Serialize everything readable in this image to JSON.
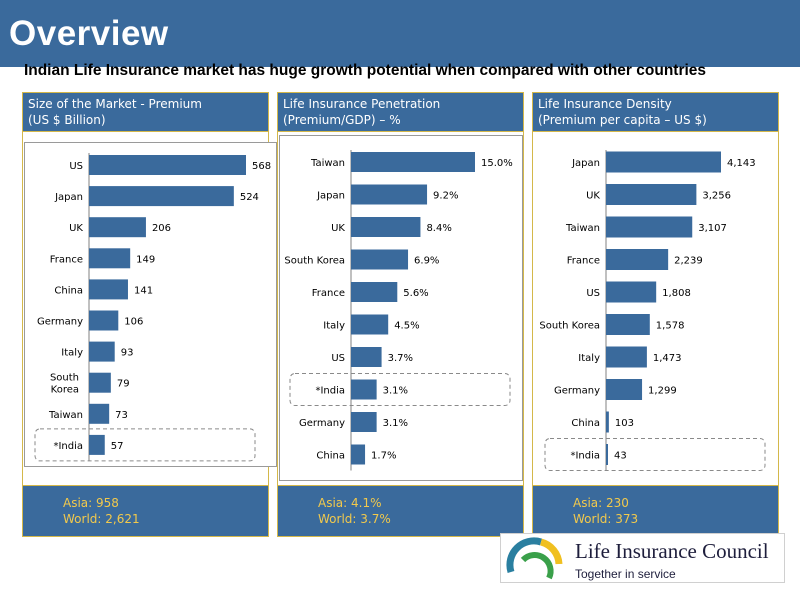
{
  "header": {
    "title": "Overview",
    "subtitle": "Indian Life Insurance market has huge growth potential when compared with other countries"
  },
  "colors": {
    "header_blue": "#3a6a9c",
    "bar_blue": "#3a6a9c",
    "footer_text": "#f2c94c",
    "border_gold": "#d4b84a"
  },
  "panels": [
    {
      "header_line1": "Size of the Market - Premium",
      "header_line2": "(US $ Billion)",
      "footer_line1": "Asia: 958",
      "footer_line2": "World: 2,621"
    },
    {
      "header_line1": "Life Insurance Penetration",
      "header_line2": "(Premium/GDP) – %",
      "footer_line1": "Asia: 4.1%",
      "footer_line2": "World: 3.7%"
    },
    {
      "header_line1": "Life Insurance Density",
      "header_line2": "(Premium per capita – US $)",
      "footer_line1": "Asia: 230",
      "footer_line2": "World: 373"
    }
  ],
  "chart_data": [
    {
      "type": "bar",
      "orientation": "horizontal",
      "categories": [
        "US",
        "Japan",
        "UK",
        "France",
        "China",
        "Germany",
        "Italy",
        "South Korea",
        "Taiwan",
        "*India"
      ],
      "values": [
        568,
        524,
        206,
        149,
        141,
        106,
        93,
        79,
        73,
        57
      ],
      "labels": [
        "568",
        "524",
        "206",
        "149",
        "141",
        "106",
        "93",
        "79",
        "73",
        "57"
      ],
      "highlight": "*India"
    },
    {
      "type": "bar",
      "orientation": "horizontal",
      "categories": [
        "Taiwan",
        "Japan",
        "UK",
        "South Korea",
        "France",
        "Italy",
        "US",
        "*India",
        "Germany",
        "China"
      ],
      "values": [
        15.0,
        9.2,
        8.4,
        6.9,
        5.6,
        4.5,
        3.7,
        3.1,
        3.1,
        1.7
      ],
      "labels": [
        "15.0%",
        "9.2%",
        "8.4%",
        "6.9%",
        "5.6%",
        "4.5%",
        "3.7%",
        "3.1%",
        "3.1%",
        "1.7%"
      ],
      "highlight": "*India"
    },
    {
      "type": "bar",
      "orientation": "horizontal",
      "categories": [
        "Japan",
        "UK",
        "Taiwan",
        "France",
        "US",
        "South Korea",
        "Italy",
        "Germany",
        "China",
        "*India"
      ],
      "values": [
        4143,
        3256,
        3107,
        2239,
        1808,
        1578,
        1473,
        1299,
        103,
        43
      ],
      "labels": [
        "4,143",
        "3,256",
        "3,107",
        "2,239",
        "1,808",
        "1,578",
        "1,473",
        "1,299",
        "103",
        "43"
      ],
      "highlight": "*India"
    }
  ],
  "logo": {
    "name": "Life Insurance Council",
    "tagline": "Together in service"
  }
}
